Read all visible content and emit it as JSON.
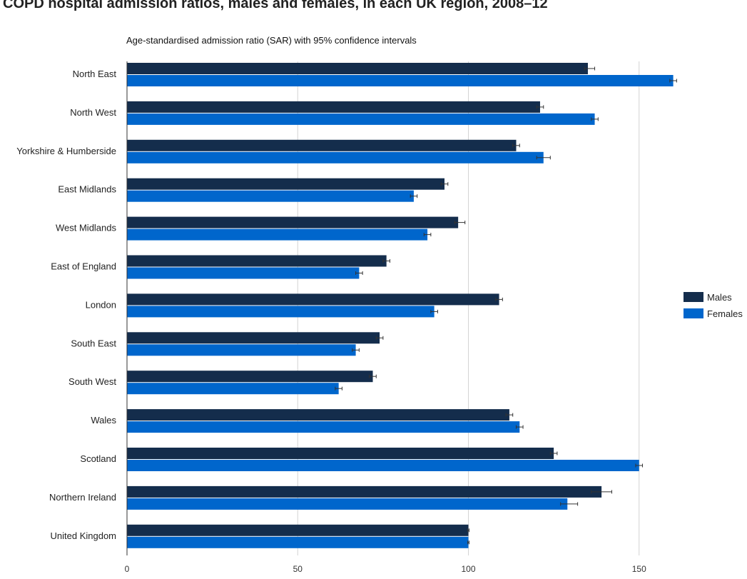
{
  "chart_data": {
    "type": "bar",
    "orientation": "horizontal",
    "title": "COPD hospital admission ratios, males and females, in each UK region, 2008–12",
    "subtitle": "Age-standardised admission ratio (SAR) with 95% confidence intervals",
    "categories": [
      "North East",
      "North West",
      "Yorkshire & Humberside",
      "East Midlands",
      "West Midlands",
      "East of England",
      "London",
      "South East",
      "South West",
      "Wales",
      "Scotland",
      "Northern Ireland",
      "United Kingdom"
    ],
    "series": [
      {
        "name": "Males",
        "color": "#142d4c",
        "values": [
          135,
          121,
          114,
          93,
          97,
          76,
          109,
          74,
          72,
          112,
          125,
          139,
          100
        ],
        "ci_low": [
          134,
          120,
          113,
          92,
          96,
          75,
          108,
          73,
          71,
          111,
          124,
          136,
          99.8
        ],
        "ci_high": [
          137,
          122,
          115,
          94,
          99,
          77,
          110,
          75,
          73,
          113,
          126,
          142,
          100.2
        ]
      },
      {
        "name": "Females",
        "color": "#0066cc",
        "values": [
          160,
          137,
          122,
          84,
          88,
          68,
          90,
          67,
          62,
          115,
          150,
          129,
          100
        ],
        "ci_low": [
          159,
          136,
          120,
          83,
          87,
          67,
          89,
          66,
          61,
          114,
          149,
          127,
          99.8
        ],
        "ci_high": [
          161,
          138,
          124,
          85,
          89,
          69,
          91,
          68,
          63,
          116,
          151,
          132,
          100.2
        ]
      }
    ],
    "xlim": [
      0,
      160
    ],
    "xticks": [
      0,
      50,
      100,
      150
    ],
    "grid": true,
    "legend": "right"
  }
}
